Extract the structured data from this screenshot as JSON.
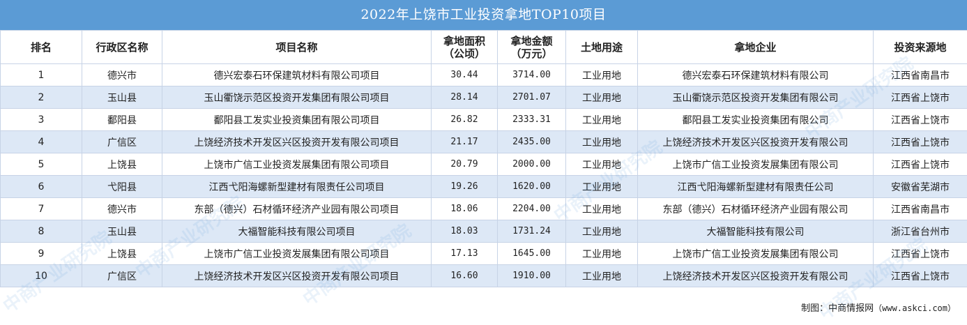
{
  "title": "2022年上饶市工业投资拿地TOP10项目",
  "headers": {
    "rank": "排名",
    "district": "行政区名称",
    "project": "项目名称",
    "area_l1": "拿地面积",
    "area_l2": "（公顷）",
    "amount_l1": "拿地金额",
    "amount_l2": "（万元）",
    "land_use": "土地用途",
    "company": "拿地企业",
    "source": "投资来源地"
  },
  "rows": [
    {
      "rank": "1",
      "district": "德兴市",
      "project": "德兴宏泰石环保建筑材料有限公司项目",
      "area": "30.44",
      "amount": "3714.00",
      "use": "工业用地",
      "company": "德兴宏泰石环保建筑材料有限公司",
      "source": "江西省南昌市"
    },
    {
      "rank": "2",
      "district": "玉山县",
      "project": "玉山衢饶示范区投资开发集团有限公司项目",
      "area": "28.14",
      "amount": "2701.07",
      "use": "工业用地",
      "company": "玉山衢饶示范区投资开发集团有限公司",
      "source": "江西省上饶市"
    },
    {
      "rank": "3",
      "district": "鄱阳县",
      "project": "鄱阳县工发实业投资集团有限公司项目",
      "area": "26.82",
      "amount": "2333.31",
      "use": "工业用地",
      "company": "鄱阳县工发实业投资集团有限公司",
      "source": "江西省上饶市"
    },
    {
      "rank": "4",
      "district": "广信区",
      "project": "上饶经济技术开发区兴区投资开发有限公司项目",
      "area": "21.17",
      "amount": "2435.00",
      "use": "工业用地",
      "company": "上饶经济技术开发区兴区投资开发有限公司",
      "source": "江西省上饶市"
    },
    {
      "rank": "5",
      "district": "上饶县",
      "project": "上饶市广信工业投资发展集团有限公司项目",
      "area": "20.79",
      "amount": "2000.00",
      "use": "工业用地",
      "company": "上饶市广信工业投资发展集团有限公司",
      "source": "江西省上饶市"
    },
    {
      "rank": "6",
      "district": "弋阳县",
      "project": "江西弋阳海螺新型建材有限责任公司项目",
      "area": "19.26",
      "amount": "1620.00",
      "use": "工业用地",
      "company": "江西弋阳海螺新型建材有限责任公司",
      "source": "安徽省芜湖市"
    },
    {
      "rank": "7",
      "district": "德兴市",
      "project": "东部（德兴）石材循环经济产业园有限公司项目",
      "area": "18.06",
      "amount": "2204.00",
      "use": "工业用地",
      "company": "东部（德兴）石材循环经济产业园有限公司",
      "source": "江西省南昌市"
    },
    {
      "rank": "8",
      "district": "玉山县",
      "project": "大福智能科技有限公司项目",
      "area": "18.03",
      "amount": "1731.24",
      "use": "工业用地",
      "company": "大福智能科技有限公司",
      "source": "浙江省台州市"
    },
    {
      "rank": "9",
      "district": "上饶县",
      "project": "上饶市广信工业投资发展集团有限公司项目",
      "area": "17.13",
      "amount": "1645.00",
      "use": "工业用地",
      "company": "上饶市广信工业投资发展集团有限公司",
      "source": "江西省上饶市"
    },
    {
      "rank": "10",
      "district": "广信区",
      "project": "上饶经济技术开发区兴区投资开发有限公司项目",
      "area": "16.60",
      "amount": "1910.00",
      "use": "工业用地",
      "company": "上饶经济技术开发区兴区投资开发有限公司",
      "source": "江西省上饶市"
    }
  ],
  "footer": {
    "label": "制图：中商情报网",
    "source": "（www.askci.com）"
  },
  "watermark": "中商产业研究院",
  "colors": {
    "title_bg": "#5b9bd5",
    "stripe": "#dde8f6",
    "border": "#c7d3e6"
  }
}
